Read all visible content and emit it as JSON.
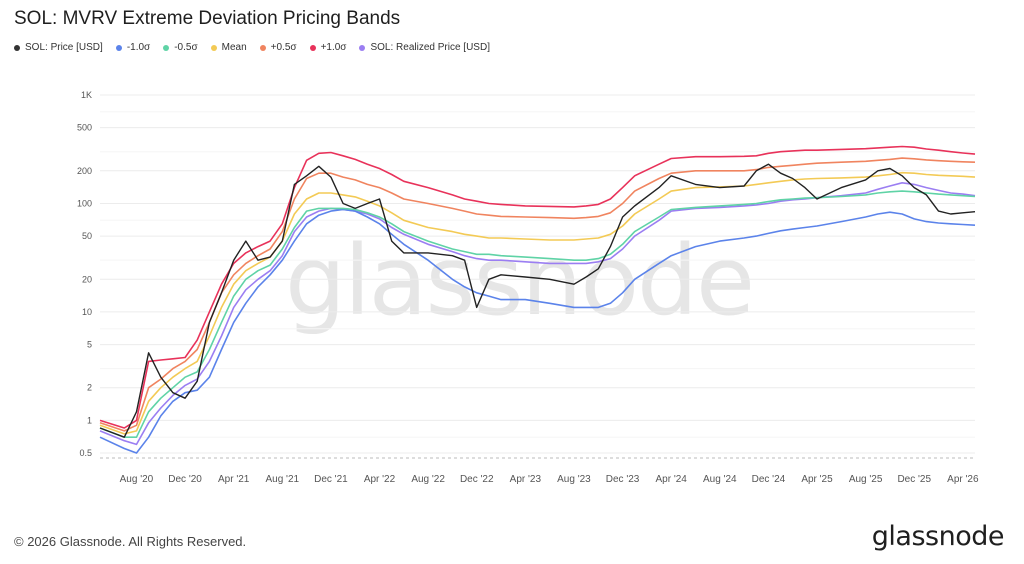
{
  "title": "SOL: MVRV Extreme Deviation Pricing Bands",
  "watermark": "glassnode",
  "footer": "© 2026 Glassnode. All Rights Reserved.",
  "logo": "glassnode",
  "chart_data": {
    "type": "line",
    "y_scale": "log",
    "ylim": [
      0.45,
      1000
    ],
    "y_ticks": [
      {
        "v": 1000,
        "label": "1K"
      },
      {
        "v": 500,
        "label": "500"
      },
      {
        "v": 200,
        "label": "200"
      },
      {
        "v": 100,
        "label": "100"
      },
      {
        "v": 50,
        "label": "50"
      },
      {
        "v": 20,
        "label": "20"
      },
      {
        "v": 10,
        "label": "10"
      },
      {
        "v": 5,
        "label": "5"
      },
      {
        "v": 2,
        "label": "2"
      },
      {
        "v": 1,
        "label": "1"
      },
      {
        "v": 0.5,
        "label": "0.5"
      }
    ],
    "xlim": [
      "2020-05",
      "2026-05"
    ],
    "x_ticks": [
      "Aug '20",
      "Dec '20",
      "Apr '21",
      "Aug '21",
      "Dec '21",
      "Apr '22",
      "Aug '22",
      "Dec '22",
      "Apr '23",
      "Aug '23",
      "Dec '23",
      "Apr '24",
      "Aug '24",
      "Dec '24",
      "Apr '25",
      "Aug '25",
      "Dec '25",
      "Apr '26"
    ],
    "x_tick_dates": [
      "2020-08",
      "2020-12",
      "2021-04",
      "2021-08",
      "2021-12",
      "2022-04",
      "2022-08",
      "2022-12",
      "2023-04",
      "2023-08",
      "2023-12",
      "2024-04",
      "2024-08",
      "2024-12",
      "2025-04",
      "2025-08",
      "2025-12",
      "2026-04"
    ],
    "x": [
      "2020-05",
      "2020-07",
      "2020-08",
      "2020-09",
      "2020-10",
      "2020-11",
      "2020-12",
      "2021-01",
      "2021-02",
      "2021-03",
      "2021-04",
      "2021-05",
      "2021-06",
      "2021-07",
      "2021-08",
      "2021-09",
      "2021-10",
      "2021-11",
      "2021-12",
      "2022-01",
      "2022-02",
      "2022-03",
      "2022-04",
      "2022-05",
      "2022-06",
      "2022-08",
      "2022-10",
      "2022-11",
      "2022-12",
      "2023-01",
      "2023-02",
      "2023-04",
      "2023-06",
      "2023-08",
      "2023-09",
      "2023-10",
      "2023-11",
      "2023-12",
      "2024-01",
      "2024-03",
      "2024-04",
      "2024-06",
      "2024-08",
      "2024-10",
      "2024-11",
      "2024-12",
      "2025-01",
      "2025-02",
      "2025-03",
      "2025-04",
      "2025-06",
      "2025-08",
      "2025-09",
      "2025-10",
      "2025-11",
      "2025-12",
      "2026-01",
      "2026-02",
      "2026-03",
      "2026-04",
      "2026-05"
    ],
    "series": [
      {
        "name": "SOL: Price [USD]",
        "color": "#222222",
        "width": 1.4,
        "values": [
          0.85,
          0.7,
          1.2,
          4.2,
          2.5,
          1.8,
          1.6,
          2.3,
          8,
          15,
          30,
          45,
          30,
          32,
          45,
          150,
          180,
          220,
          175,
          100,
          90,
          100,
          110,
          45,
          35,
          35,
          33,
          30,
          11,
          20,
          22,
          21,
          20,
          18,
          21,
          25,
          40,
          75,
          95,
          140,
          180,
          150,
          140,
          145,
          200,
          230,
          190,
          170,
          140,
          110,
          140,
          165,
          200,
          210,
          180,
          140,
          120,
          85,
          80,
          82,
          84
        ]
      },
      {
        "name": "-1.0σ",
        "color": "#5b83ea",
        "width": 1.6,
        "values": [
          0.7,
          0.55,
          0.5,
          0.7,
          1.1,
          1.5,
          1.8,
          1.9,
          2.5,
          4.5,
          8,
          12,
          17,
          22,
          30,
          45,
          65,
          78,
          85,
          88,
          85,
          75,
          65,
          52,
          42,
          30,
          20,
          17,
          15,
          14,
          13,
          13,
          12,
          11,
          11,
          11,
          12,
          15,
          20,
          28,
          33,
          40,
          45,
          48,
          50,
          53,
          56,
          58,
          60,
          62,
          68,
          75,
          80,
          83,
          80,
          72,
          68,
          66,
          65,
          64,
          63
        ]
      },
      {
        "name": "-0.5σ",
        "color": "#5fd3a6",
        "width": 1.6,
        "values": [
          0.85,
          0.7,
          0.7,
          1.2,
          1.6,
          2.0,
          2.5,
          2.8,
          4.5,
          8,
          14,
          20,
          24,
          27,
          38,
          60,
          85,
          90,
          90,
          90,
          88,
          82,
          75,
          65,
          55,
          45,
          38,
          36,
          34,
          34,
          33,
          32,
          31,
          30,
          30,
          31,
          34,
          42,
          55,
          75,
          88,
          92,
          95,
          98,
          100,
          104,
          108,
          110,
          112,
          113,
          116,
          120,
          125,
          128,
          130,
          128,
          125,
          122,
          120,
          118,
          116
        ]
      },
      {
        "name": "Mean",
        "color": "#f3ca55",
        "width": 1.6,
        "values": [
          0.9,
          0.75,
          0.8,
          1.5,
          2.0,
          2.5,
          3.0,
          3.5,
          6,
          11,
          18,
          24,
          28,
          32,
          45,
          80,
          110,
          125,
          125,
          120,
          115,
          105,
          95,
          82,
          70,
          60,
          55,
          52,
          50,
          48,
          48,
          47,
          46,
          46,
          47,
          48,
          52,
          62,
          80,
          110,
          130,
          140,
          142,
          145,
          150,
          155,
          160,
          165,
          168,
          170,
          172,
          175,
          180,
          185,
          192,
          190,
          185,
          182,
          180,
          178,
          175
        ]
      },
      {
        "name": "+0.5σ",
        "color": "#f0845f",
        "width": 1.6,
        "values": [
          0.95,
          0.8,
          0.9,
          2.0,
          2.4,
          3.0,
          3.5,
          4.5,
          8,
          15,
          22,
          28,
          33,
          38,
          55,
          110,
          170,
          190,
          190,
          175,
          165,
          150,
          140,
          125,
          110,
          100,
          90,
          85,
          80,
          78,
          76,
          75,
          74,
          73,
          74,
          76,
          82,
          100,
          130,
          170,
          190,
          200,
          200,
          200,
          205,
          215,
          220,
          225,
          230,
          235,
          240,
          245,
          250,
          255,
          262,
          258,
          252,
          248,
          245,
          242,
          240
        ]
      },
      {
        "name": "+1.0σ",
        "color": "#e8325a",
        "width": 1.6,
        "values": [
          1.0,
          0.85,
          1.0,
          3.5,
          3.6,
          3.7,
          3.8,
          5.5,
          10,
          18,
          28,
          35,
          40,
          45,
          65,
          140,
          250,
          290,
          295,
          275,
          255,
          230,
          210,
          185,
          160,
          140,
          120,
          110,
          105,
          100,
          98,
          95,
          94,
          93,
          95,
          98,
          110,
          140,
          180,
          230,
          260,
          270,
          270,
          272,
          275,
          290,
          300,
          305,
          310,
          310,
          315,
          320,
          325,
          330,
          335,
          330,
          318,
          310,
          300,
          292,
          285
        ]
      },
      {
        "name": "SOL: Realized Price [USD]",
        "color": "#9b7ef2",
        "width": 1.6,
        "values": [
          0.8,
          0.65,
          0.6,
          0.95,
          1.3,
          1.7,
          2.1,
          2.4,
          3.5,
          6,
          11,
          16,
          20,
          24,
          33,
          55,
          75,
          85,
          90,
          88,
          85,
          80,
          72,
          60,
          52,
          42,
          36,
          33,
          31,
          30,
          30,
          29,
          28,
          28,
          28,
          29,
          31,
          38,
          50,
          70,
          85,
          90,
          92,
          95,
          97,
          100,
          105,
          108,
          110,
          113,
          118,
          125,
          135,
          145,
          155,
          150,
          140,
          132,
          125,
          122,
          118
        ]
      }
    ]
  },
  "legend": [
    {
      "label": "SOL: Price [USD]",
      "color": "#333333"
    },
    {
      "label": "-1.0σ",
      "color": "#5b83ea"
    },
    {
      "label": "-0.5σ",
      "color": "#5fd3a6"
    },
    {
      "label": "Mean",
      "color": "#f3ca55"
    },
    {
      "label": "+0.5σ",
      "color": "#f0845f"
    },
    {
      "label": "+1.0σ",
      "color": "#e8325a"
    },
    {
      "label": "SOL: Realized Price [USD]",
      "color": "#9b7ef2"
    }
  ]
}
